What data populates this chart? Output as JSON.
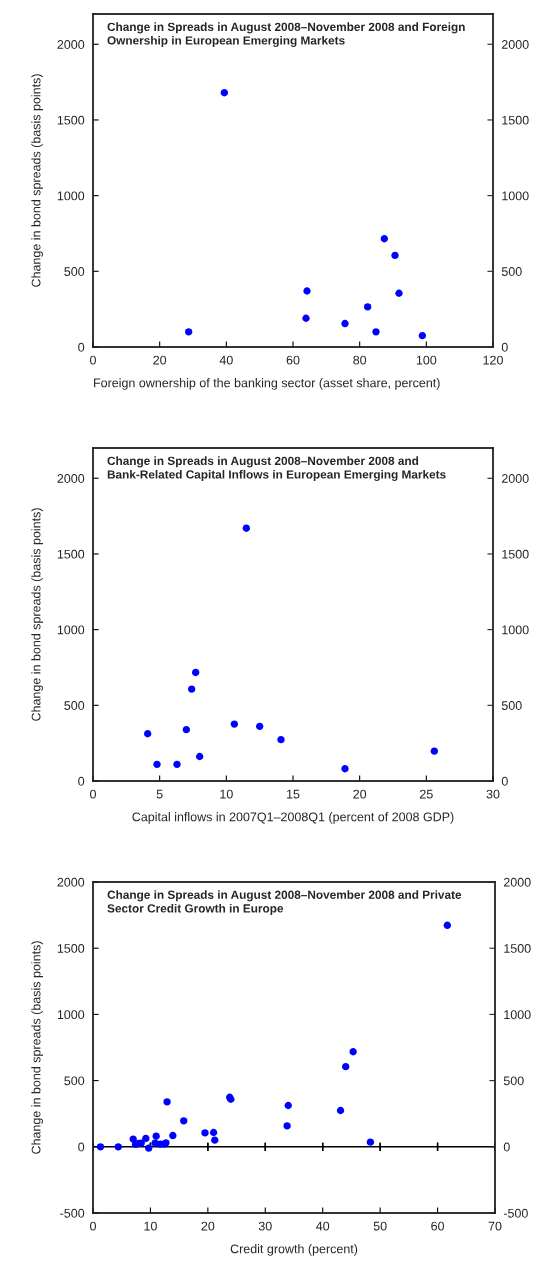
{
  "chart_data": [
    {
      "type": "scatter",
      "title": "Change in Spreads in August 2008–November 2008 and Foreign Ownership in European Emerging Markets",
      "xlabel": "Foreign ownership of the banking sector (asset share, percent)",
      "ylabel": "Change in bond spreads (basis points)",
      "xlim": [
        0,
        120
      ],
      "xticks": [
        0,
        20,
        40,
        60,
        80,
        100,
        120
      ],
      "ylim": [
        0,
        2200
      ],
      "yticks": [
        0,
        500,
        1000,
        1500,
        2000
      ],
      "y2lim": [
        0,
        2200
      ],
      "y2ticks": [
        0,
        500,
        1000,
        1500,
        2000
      ],
      "grid": false,
      "marker": "circle",
      "series": [
        {
          "color": "#0000ff",
          "x": [
            28.7,
            39.4,
            64.2,
            63.9,
            75.6,
            82.4,
            84.9,
            87.4,
            90.6,
            91.8,
            98.8
          ],
          "values": [
            100,
            1680,
            370,
            190,
            155,
            265,
            100,
            715,
            605,
            355,
            75
          ]
        }
      ]
    },
    {
      "type": "scatter",
      "title": "Change in Spreads in August 2008–November 2008 and Bank-Related Capital Inflows in European Emerging Markets",
      "xlabel": "Capital inflows in 2007Q1–2008Q1 (percent of 2008 GDP)",
      "ylabel": "Change in bond spreads (basis points)",
      "xlim": [
        0,
        30
      ],
      "xticks": [
        0,
        5,
        10,
        15,
        20,
        25,
        30
      ],
      "ylim": [
        0,
        2200
      ],
      "yticks": [
        0,
        500,
        1000,
        1500,
        2000
      ],
      "y2lim": [
        0,
        2200
      ],
      "y2ticks": [
        0,
        500,
        1000,
        1500,
        2000
      ],
      "grid": false,
      "marker": "circle",
      "series": [
        {
          "color": "#0000ff",
          "x": [
            4.1,
            4.8,
            6.3,
            7.0,
            7.4,
            7.7,
            8.0,
            10.6,
            11.5,
            12.5,
            14.1,
            18.9,
            25.6
          ],
          "values": [
            312,
            110,
            110,
            339,
            607,
            717,
            162,
            376,
            1670,
            361,
            273,
            81,
            197
          ]
        }
      ]
    },
    {
      "type": "scatter",
      "title": "Change in Spreads in August 2008–November 2008 and Private Sector Credit Growth in Europe",
      "xlabel": "Credit growth (percent)",
      "ylabel": "Change in bond spreads (basis points)",
      "xlim": [
        0,
        70
      ],
      "xticks": [
        0,
        10,
        20,
        30,
        40,
        50,
        60,
        70
      ],
      "ylim": [
        -500,
        2000
      ],
      "yticks": [
        -500,
        0,
        500,
        1000,
        1500,
        2000
      ],
      "y2lim": [
        -500,
        2000
      ],
      "y2ticks": [
        -500,
        0,
        500,
        1000,
        1500,
        2000
      ],
      "grid": false,
      "marker": "circle",
      "ref_lines": [
        {
          "axis": "y",
          "value": 0,
          "color": "#000000",
          "line_style": "solid"
        }
      ],
      "series": [
        {
          "color": "#0000ff",
          "x": [
            1.3,
            4.4,
            7.0,
            7.4,
            7.9,
            8.4,
            9.2,
            9.7,
            10.8,
            11.0,
            11.7,
            12.4,
            12.7,
            12.9,
            13.9,
            15.8,
            19.5,
            21.0,
            21.2,
            23.8,
            24.0,
            33.8,
            34.0,
            43.1,
            44.0,
            45.3,
            48.3,
            61.7
          ],
          "values": [
            0,
            0,
            58,
            18,
            25,
            28,
            63,
            -10,
            28,
            80,
            20,
            20,
            30,
            339,
            85,
            196,
            105,
            108,
            50,
            374,
            359,
            158,
            312,
            274,
            605,
            718,
            35,
            1673
          ]
        }
      ]
    }
  ]
}
